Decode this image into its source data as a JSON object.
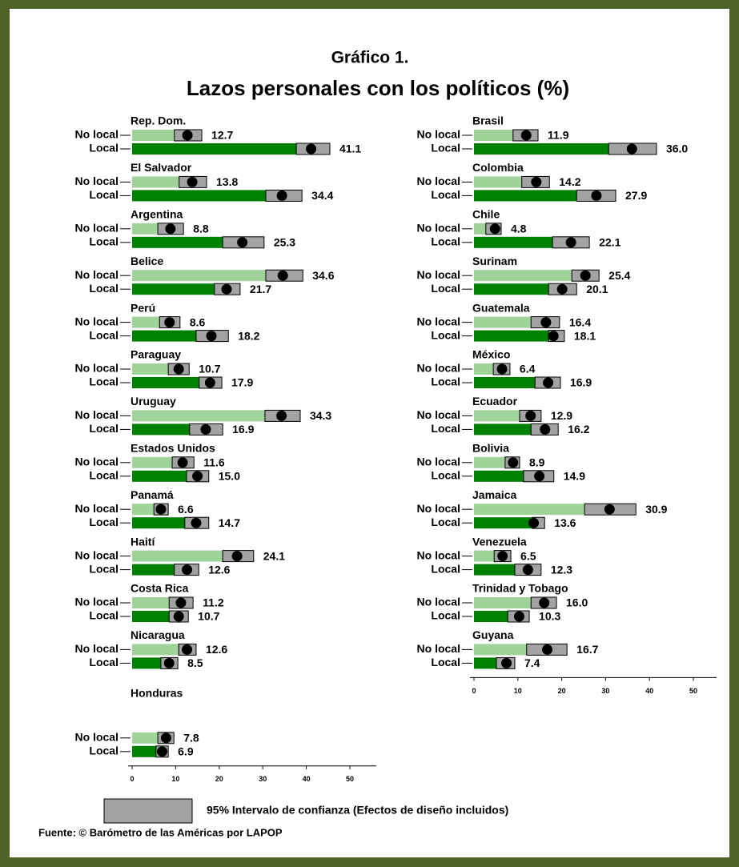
{
  "chart_data": {
    "type": "bar",
    "title": "Gráfico 1.",
    "subtitle": "Lazos personales con los políticos (%)",
    "categories": [
      "No local",
      "Local"
    ],
    "colors": [
      "#9fd39a",
      "#008000"
    ],
    "ci_color": "#a3a3a3",
    "legend": "95% Intervalo de confianza (Efectos de diseño incluidos)",
    "source": "Fuente: © Barómetro de las Américas por LAPOP",
    "panels": [
      {
        "xlim": [
          0,
          55
        ],
        "xticks": [
          0,
          10,
          20,
          30,
          40,
          50
        ],
        "groups": [
          {
            "name": "Rep. Dom.",
            "values": [
              12.7,
              41.1
            ],
            "value_labels": [
              "12.7",
              "41.1"
            ],
            "ci_low": [
              9.7,
              37.7
            ],
            "ci_high": [
              16.0,
              45.4
            ]
          },
          {
            "name": "El Salvador",
            "values": [
              13.8,
              34.4
            ],
            "value_labels": [
              "13.8",
              "34.4"
            ],
            "ci_low": [
              10.8,
              30.7
            ],
            "ci_high": [
              17.1,
              39.0
            ]
          },
          {
            "name": "Argentina",
            "values": [
              8.8,
              25.3
            ],
            "value_labels": [
              "8.8",
              "25.3"
            ],
            "ci_low": [
              5.9,
              20.8
            ],
            "ci_high": [
              11.8,
              30.3
            ]
          },
          {
            "name": "Belice",
            "values": [
              34.6,
              21.7
            ],
            "value_labels": [
              "34.6",
              "21.7"
            ],
            "ci_low": [
              30.7,
              18.9
            ],
            "ci_high": [
              39.2,
              24.8
            ]
          },
          {
            "name": "Perú",
            "values": [
              8.6,
              18.2
            ],
            "value_labels": [
              "8.6",
              "18.2"
            ],
            "ci_low": [
              6.3,
              14.7
            ],
            "ci_high": [
              11.0,
              22.1
            ]
          },
          {
            "name": "Paraguay",
            "values": [
              10.7,
              17.9
            ],
            "value_labels": [
              "10.7",
              "17.9"
            ],
            "ci_low": [
              8.3,
              15.4
            ],
            "ci_high": [
              13.1,
              20.6
            ]
          },
          {
            "name": "Uruguay",
            "values": [
              34.3,
              16.9
            ],
            "value_labels": [
              "34.3",
              "16.9"
            ],
            "ci_low": [
              30.5,
              13.2
            ],
            "ci_high": [
              38.6,
              20.8
            ]
          },
          {
            "name": "Estados Unidos",
            "values": [
              11.6,
              15.0
            ],
            "value_labels": [
              "11.6",
              "15.0"
            ],
            "ci_low": [
              9.2,
              12.5
            ],
            "ci_high": [
              14.2,
              17.6
            ]
          },
          {
            "name": "Panamá",
            "values": [
              6.6,
              14.7
            ],
            "value_labels": [
              "6.6",
              "14.7"
            ],
            "ci_low": [
              5.0,
              12.1
            ],
            "ci_high": [
              8.3,
              17.6
            ]
          },
          {
            "name": "Haití",
            "values": [
              24.1,
              12.6
            ],
            "value_labels": [
              "24.1",
              "12.6"
            ],
            "ci_low": [
              20.8,
              9.7
            ],
            "ci_high": [
              27.9,
              15.3
            ]
          },
          {
            "name": "Costa Rica",
            "values": [
              11.2,
              10.7
            ],
            "value_labels": [
              "11.2",
              "10.7"
            ],
            "ci_low": [
              8.5,
              8.5
            ],
            "ci_high": [
              14.0,
              12.9
            ]
          },
          {
            "name": "Nicaragua",
            "values": [
              12.6,
              8.5
            ],
            "value_labels": [
              "12.6",
              "8.5"
            ],
            "ci_low": [
              10.7,
              6.6
            ],
            "ci_high": [
              14.7,
              10.5
            ]
          },
          {
            "name": "Honduras",
            "values": [
              7.8,
              6.9
            ],
            "value_labels": [
              "7.8",
              "6.9"
            ],
            "ci_low": [
              5.9,
              5.5
            ],
            "ci_high": [
              9.6,
              8.3
            ]
          }
        ]
      },
      {
        "xlim": [
          0,
          55
        ],
        "xticks": [
          0,
          10,
          20,
          30,
          40,
          50
        ],
        "groups": [
          {
            "name": "Brasil",
            "values": [
              11.9,
              36.0
            ],
            "value_labels": [
              "11.9",
              "36.0"
            ],
            "ci_low": [
              8.9,
              30.7
            ],
            "ci_high": [
              14.6,
              41.6
            ]
          },
          {
            "name": "Colombia",
            "values": [
              14.2,
              27.9
            ],
            "value_labels": [
              "14.2",
              "27.9"
            ],
            "ci_low": [
              10.9,
              23.4
            ],
            "ci_high": [
              17.2,
              32.3
            ]
          },
          {
            "name": "Chile",
            "values": [
              4.8,
              22.1
            ],
            "value_labels": [
              "4.8",
              "22.1"
            ],
            "ci_low": [
              2.7,
              17.9
            ],
            "ci_high": [
              6.2,
              26.3
            ]
          },
          {
            "name": "Surinam",
            "values": [
              25.4,
              20.1
            ],
            "value_labels": [
              "25.4",
              "20.1"
            ],
            "ci_low": [
              22.3,
              17.0
            ],
            "ci_high": [
              28.5,
              23.4
            ]
          },
          {
            "name": "Guatemala",
            "values": [
              16.4,
              18.1
            ],
            "value_labels": [
              "16.4",
              "18.1"
            ],
            "ci_low": [
              13.0,
              17.0
            ],
            "ci_high": [
              19.5,
              20.6
            ]
          },
          {
            "name": "México",
            "values": [
              6.4,
              16.9
            ],
            "value_labels": [
              "6.4",
              "16.9"
            ],
            "ci_low": [
              4.4,
              13.9
            ],
            "ci_high": [
              8.2,
              19.7
            ]
          },
          {
            "name": "Ecuador",
            "values": [
              12.9,
              16.2
            ],
            "value_labels": [
              "12.9",
              "16.2"
            ],
            "ci_low": [
              10.4,
              13.0
            ],
            "ci_high": [
              15.3,
              19.2
            ]
          },
          {
            "name": "Bolivia",
            "values": [
              8.9,
              14.9
            ],
            "value_labels": [
              "8.9",
              "14.9"
            ],
            "ci_low": [
              7.1,
              11.3
            ],
            "ci_high": [
              10.4,
              18.2
            ]
          },
          {
            "name": "Jamaica",
            "values": [
              30.9,
              13.6
            ],
            "value_labels": [
              "30.9",
              "13.6"
            ],
            "ci_low": [
              25.2,
              13.3
            ],
            "ci_high": [
              36.9,
              16.1
            ]
          },
          {
            "name": "Venezuela",
            "values": [
              6.5,
              12.3
            ],
            "value_labels": [
              "6.5",
              "12.3"
            ],
            "ci_low": [
              4.6,
              9.3
            ],
            "ci_high": [
              8.4,
              15.3
            ]
          },
          {
            "name": "Trinidad y Tobago",
            "values": [
              16.0,
              10.3
            ],
            "value_labels": [
              "16.0",
              "10.3"
            ],
            "ci_low": [
              13.0,
              7.7
            ],
            "ci_high": [
              18.8,
              12.6
            ]
          },
          {
            "name": "Guyana",
            "values": [
              16.7,
              7.4
            ],
            "value_labels": [
              "16.7",
              "7.4"
            ],
            "ci_low": [
              12.0,
              5.1
            ],
            "ci_high": [
              21.2,
              9.3
            ]
          }
        ]
      }
    ]
  }
}
